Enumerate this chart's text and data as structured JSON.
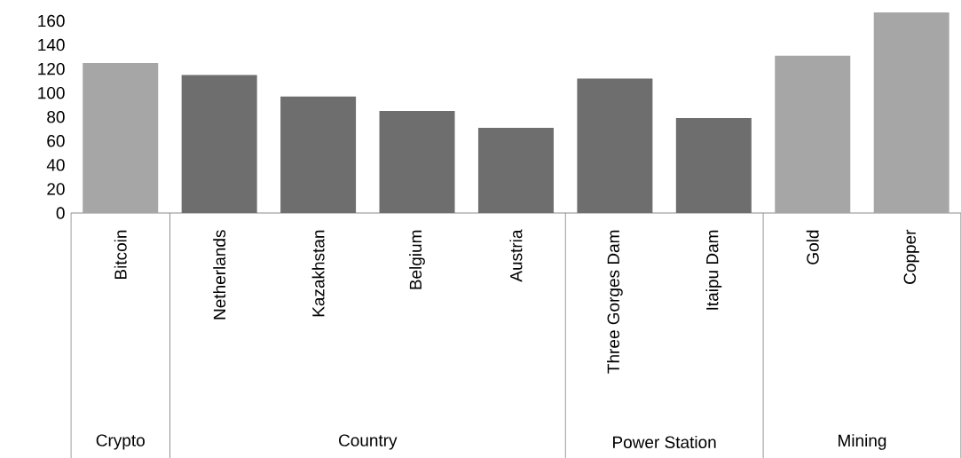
{
  "chart_data": {
    "type": "bar",
    "categories": [
      "Bitcoin",
      "Netherlands",
      "Kazakhstan",
      "Belgium",
      "Austria",
      "Three Gorges Dam",
      "Itaipu Dam",
      "Gold",
      "Copper"
    ],
    "values": [
      125,
      115,
      97,
      85,
      71,
      112,
      79,
      131,
      167
    ],
    "colors": [
      "#a6a6a6",
      "#6e6e6e",
      "#6e6e6e",
      "#6e6e6e",
      "#6e6e6e",
      "#6e6e6e",
      "#6e6e6e",
      "#a6a6a6",
      "#a6a6a6"
    ],
    "ylim": [
      0,
      170
    ],
    "yticks": [
      0,
      20,
      40,
      60,
      80,
      100,
      120,
      140,
      160
    ],
    "grid": false,
    "annotations": [
      "Crypto",
      "Country",
      "Power Station",
      "Mining"
    ]
  }
}
